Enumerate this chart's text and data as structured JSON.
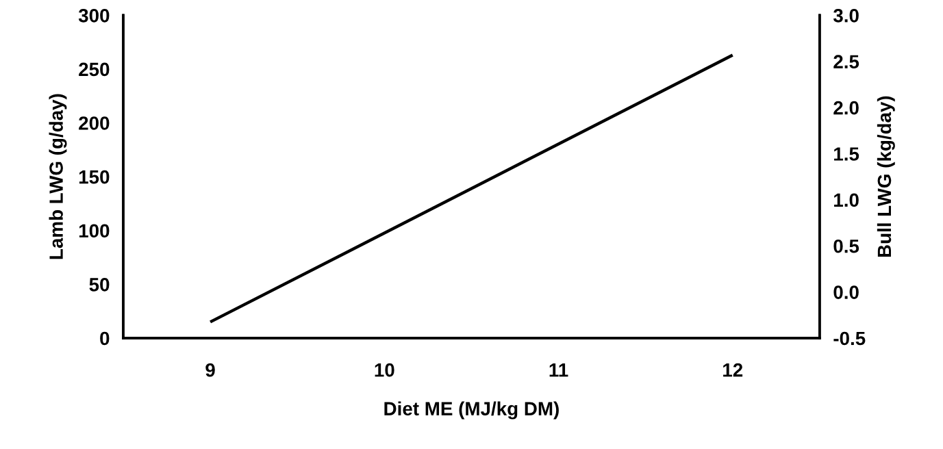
{
  "chart_data": {
    "type": "line",
    "xlabel": "Diet ME (MJ/kg DM)",
    "ylabel": "Lamb LWG (g/day)",
    "y2label": "Bull LWG (kg/day)",
    "series": [
      {
        "color": "#000000",
        "x": [
          9,
          12
        ],
        "values": [
          15,
          263
        ]
      }
    ],
    "xlim": [
      8.5,
      12.5
    ],
    "xticks": [
      9,
      10,
      11,
      12
    ],
    "ylim": [
      0,
      300
    ],
    "yticks": [
      0,
      50,
      100,
      150,
      200,
      250,
      300
    ],
    "y2lim": [
      -0.5,
      3.0
    ],
    "y2ticks": [
      {
        "value": -0.5,
        "label": "-0.5"
      },
      {
        "value": 0,
        "label": "0.0"
      },
      {
        "value": 0.5,
        "label": "0.5"
      },
      {
        "value": 1,
        "label": "1.0"
      },
      {
        "value": 1.5,
        "label": "1.5"
      },
      {
        "value": 2,
        "label": "2.0"
      },
      {
        "value": 2.5,
        "label": "2.5"
      },
      {
        "value": 3,
        "label": "3.0"
      }
    ],
    "grid": false,
    "marker": "none",
    "line_style": "solid"
  }
}
